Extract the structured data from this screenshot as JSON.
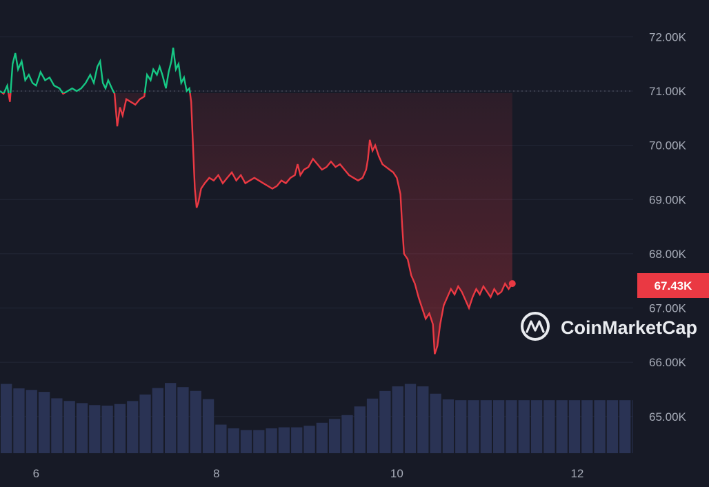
{
  "chart_data": {
    "type": "area",
    "title": "",
    "xlabel": "",
    "ylabel": "",
    "x_ticks": [
      {
        "day": 6,
        "label": "6"
      },
      {
        "day": 8,
        "label": "8"
      },
      {
        "day": 10,
        "label": "10"
      },
      {
        "day": 12,
        "label": "12"
      }
    ],
    "y_ticks": [
      {
        "value": 72000,
        "label": "72.00K"
      },
      {
        "value": 71000,
        "label": "71.00K"
      },
      {
        "value": 70000,
        "label": "70.00K"
      },
      {
        "value": 69000,
        "label": "69.00K"
      },
      {
        "value": 68000,
        "label": "68.00K"
      },
      {
        "value": 67000,
        "label": "67.00K"
      },
      {
        "value": 66000,
        "label": "66.00K"
      },
      {
        "value": 65000,
        "label": "65.00K"
      }
    ],
    "xlim": [
      5.6,
      12.62
    ],
    "ylim": [
      64.45,
      72.45
    ],
    "baseline": {
      "value": 71000,
      "style": "dotted"
    },
    "current_price": {
      "value": 67430,
      "label": "67.43K"
    },
    "colors": {
      "above_baseline": "#16c784",
      "below_baseline": "#ea3943",
      "volume": "#2a3354",
      "background": "#171a26"
    },
    "series": [
      {
        "kind": "price",
        "points": [
          [
            5.6,
            71.0
          ],
          [
            5.64,
            70.95
          ],
          [
            5.68,
            71.1
          ],
          [
            5.71,
            70.8
          ],
          [
            5.74,
            71.5
          ],
          [
            5.77,
            71.7
          ],
          [
            5.8,
            71.4
          ],
          [
            5.84,
            71.55
          ],
          [
            5.88,
            71.2
          ],
          [
            5.92,
            71.3
          ],
          [
            5.96,
            71.15
          ],
          [
            6.0,
            71.1
          ],
          [
            6.05,
            71.35
          ],
          [
            6.1,
            71.2
          ],
          [
            6.15,
            71.25
          ],
          [
            6.2,
            71.1
          ],
          [
            6.26,
            71.05
          ],
          [
            6.3,
            70.95
          ],
          [
            6.35,
            71.0
          ],
          [
            6.4,
            71.05
          ],
          [
            6.45,
            71.0
          ],
          [
            6.5,
            71.05
          ],
          [
            6.55,
            71.15
          ],
          [
            6.6,
            71.3
          ],
          [
            6.64,
            71.15
          ],
          [
            6.68,
            71.45
          ],
          [
            6.71,
            71.55
          ],
          [
            6.74,
            71.15
          ],
          [
            6.77,
            71.05
          ],
          [
            6.8,
            71.2
          ],
          [
            6.84,
            71.05
          ],
          [
            6.87,
            70.95
          ],
          [
            6.9,
            70.35
          ],
          [
            6.93,
            70.7
          ],
          [
            6.96,
            70.55
          ],
          [
            7.0,
            70.85
          ],
          [
            7.05,
            70.8
          ],
          [
            7.1,
            70.75
          ],
          [
            7.15,
            70.85
          ],
          [
            7.2,
            70.9
          ],
          [
            7.23,
            71.3
          ],
          [
            7.27,
            71.2
          ],
          [
            7.3,
            71.4
          ],
          [
            7.34,
            71.3
          ],
          [
            7.37,
            71.45
          ],
          [
            7.4,
            71.3
          ],
          [
            7.44,
            71.05
          ],
          [
            7.47,
            71.35
          ],
          [
            7.5,
            71.55
          ],
          [
            7.52,
            71.8
          ],
          [
            7.55,
            71.4
          ],
          [
            7.58,
            71.5
          ],
          [
            7.61,
            71.15
          ],
          [
            7.64,
            71.25
          ],
          [
            7.67,
            71.0
          ],
          [
            7.7,
            71.05
          ],
          [
            7.72,
            70.8
          ],
          [
            7.74,
            70.0
          ],
          [
            7.76,
            69.2
          ],
          [
            7.78,
            68.85
          ],
          [
            7.8,
            68.95
          ],
          [
            7.83,
            69.2
          ],
          [
            7.87,
            69.3
          ],
          [
            7.92,
            69.4
          ],
          [
            7.97,
            69.35
          ],
          [
            8.02,
            69.45
          ],
          [
            8.07,
            69.3
          ],
          [
            8.12,
            69.4
          ],
          [
            8.17,
            69.5
          ],
          [
            8.22,
            69.35
          ],
          [
            8.27,
            69.45
          ],
          [
            8.32,
            69.3
          ],
          [
            8.37,
            69.35
          ],
          [
            8.42,
            69.4
          ],
          [
            8.47,
            69.35
          ],
          [
            8.52,
            69.3
          ],
          [
            8.57,
            69.25
          ],
          [
            8.62,
            69.2
          ],
          [
            8.67,
            69.25
          ],
          [
            8.72,
            69.35
          ],
          [
            8.77,
            69.3
          ],
          [
            8.82,
            69.4
          ],
          [
            8.87,
            69.45
          ],
          [
            8.9,
            69.65
          ],
          [
            8.93,
            69.45
          ],
          [
            8.97,
            69.55
          ],
          [
            9.02,
            69.6
          ],
          [
            9.07,
            69.75
          ],
          [
            9.12,
            69.65
          ],
          [
            9.17,
            69.55
          ],
          [
            9.22,
            69.6
          ],
          [
            9.27,
            69.7
          ],
          [
            9.32,
            69.6
          ],
          [
            9.37,
            69.65
          ],
          [
            9.42,
            69.55
          ],
          [
            9.47,
            69.45
          ],
          [
            9.52,
            69.4
          ],
          [
            9.57,
            69.35
          ],
          [
            9.62,
            69.4
          ],
          [
            9.66,
            69.55
          ],
          [
            9.68,
            69.75
          ],
          [
            9.7,
            70.1
          ],
          [
            9.73,
            69.9
          ],
          [
            9.76,
            70.0
          ],
          [
            9.8,
            69.8
          ],
          [
            9.84,
            69.65
          ],
          [
            9.88,
            69.6
          ],
          [
            9.92,
            69.55
          ],
          [
            9.96,
            69.5
          ],
          [
            10.0,
            69.4
          ],
          [
            10.04,
            69.1
          ],
          [
            10.06,
            68.5
          ],
          [
            10.08,
            68.0
          ],
          [
            10.12,
            67.9
          ],
          [
            10.16,
            67.6
          ],
          [
            10.2,
            67.45
          ],
          [
            10.24,
            67.2
          ],
          [
            10.28,
            67.0
          ],
          [
            10.32,
            66.8
          ],
          [
            10.36,
            66.9
          ],
          [
            10.4,
            66.7
          ],
          [
            10.42,
            66.15
          ],
          [
            10.45,
            66.3
          ],
          [
            10.48,
            66.7
          ],
          [
            10.52,
            67.05
          ],
          [
            10.56,
            67.2
          ],
          [
            10.6,
            67.35
          ],
          [
            10.64,
            67.25
          ],
          [
            10.68,
            67.4
          ],
          [
            10.72,
            67.3
          ],
          [
            10.76,
            67.15
          ],
          [
            10.8,
            67.0
          ],
          [
            10.84,
            67.2
          ],
          [
            10.88,
            67.35
          ],
          [
            10.92,
            67.25
          ],
          [
            10.96,
            67.4
          ],
          [
            11.0,
            67.3
          ],
          [
            11.04,
            67.2
          ],
          [
            11.08,
            67.35
          ],
          [
            11.12,
            67.25
          ],
          [
            11.16,
            67.3
          ],
          [
            11.2,
            67.45
          ],
          [
            11.24,
            67.35
          ],
          [
            11.28,
            67.45
          ]
        ]
      },
      {
        "kind": "volume",
        "points": [
          [
            5.6,
            65.6
          ],
          [
            5.7,
            65.6
          ],
          [
            5.8,
            65.52
          ],
          [
            5.9,
            65.5
          ],
          [
            6.0,
            65.48
          ],
          [
            6.1,
            65.45
          ],
          [
            6.2,
            65.35
          ],
          [
            6.3,
            65.3
          ],
          [
            6.4,
            65.28
          ],
          [
            6.5,
            65.25
          ],
          [
            6.6,
            65.22
          ],
          [
            6.7,
            65.2
          ],
          [
            6.8,
            65.2
          ],
          [
            6.9,
            65.22
          ],
          [
            7.0,
            65.25
          ],
          [
            7.1,
            65.3
          ],
          [
            7.2,
            65.4
          ],
          [
            7.3,
            65.45
          ],
          [
            7.4,
            65.6
          ],
          [
            7.5,
            65.62
          ],
          [
            7.6,
            65.55
          ],
          [
            7.7,
            65.52
          ],
          [
            7.8,
            65.45
          ],
          [
            7.9,
            65.35
          ],
          [
            7.95,
            65.2
          ],
          [
            8.0,
            64.95
          ],
          [
            8.05,
            64.85
          ],
          [
            8.1,
            64.8
          ],
          [
            8.2,
            64.78
          ],
          [
            8.3,
            64.75
          ],
          [
            8.4,
            64.75
          ],
          [
            8.5,
            64.75
          ],
          [
            8.6,
            64.78
          ],
          [
            8.7,
            64.8
          ],
          [
            8.8,
            64.8
          ],
          [
            8.9,
            64.8
          ],
          [
            9.0,
            64.82
          ],
          [
            9.1,
            64.85
          ],
          [
            9.2,
            64.9
          ],
          [
            9.3,
            64.95
          ],
          [
            9.4,
            65.0
          ],
          [
            9.5,
            65.05
          ],
          [
            9.6,
            65.2
          ],
          [
            9.7,
            65.3
          ],
          [
            9.8,
            65.4
          ],
          [
            9.9,
            65.5
          ],
          [
            10.0,
            65.55
          ],
          [
            10.1,
            65.6
          ],
          [
            10.2,
            65.6
          ],
          [
            10.3,
            65.55
          ],
          [
            10.4,
            65.45
          ],
          [
            10.5,
            65.35
          ],
          [
            10.6,
            65.3
          ]
        ]
      }
    ]
  },
  "price_badge": {
    "label": "67.43K",
    "color": "#ea3943"
  },
  "watermark": {
    "brand": "CoinMarketCap",
    "logo_icon": "coinmarketcap-logo-icon"
  }
}
